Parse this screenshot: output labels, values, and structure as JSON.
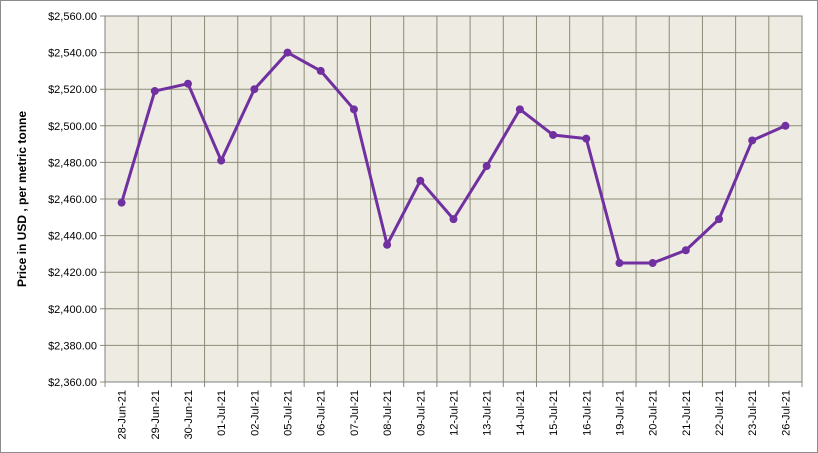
{
  "chart_data": {
    "type": "line",
    "title": "",
    "xlabel": "",
    "ylabel": "Price in USD , per metric tonne",
    "ylim": [
      2360,
      2560
    ],
    "y_step": 20,
    "y_tick_labels": [
      "$2,360.00",
      "$2,380.00",
      "$2,400.00",
      "$2,420.00",
      "$2,440.00",
      "$2,460.00",
      "$2,480.00",
      "$2,500.00",
      "$2,520.00",
      "$2,540.00",
      "$2,560.00"
    ],
    "categories": [
      "28-Jun-21",
      "29-Jun-21",
      "30-Jun-21",
      "01-Jul-21",
      "02-Jul-21",
      "05-Jul-21",
      "06-Jul-21",
      "07-Jul-21",
      "08-Jul-21",
      "09-Jul-21",
      "12-Jul-21",
      "13-Jul-21",
      "14-Jul-21",
      "15-Jul-21",
      "16-Jul-21",
      "19-Jul-21",
      "20-Jul-21",
      "21-Jul-21",
      "22-Jul-21",
      "23-Jul-21",
      "26-Jul-21"
    ],
    "series": [
      {
        "values": [
          2458,
          2519,
          2523,
          2481,
          2520,
          2540,
          2530,
          2509,
          2435,
          2470,
          2449,
          2478,
          2509,
          2495,
          2493,
          2425,
          2425,
          2432,
          2449,
          2492,
          2500
        ],
        "color": "#7030A0"
      }
    ],
    "grid": true,
    "legend": "none",
    "plot_background": "#EEEBE3",
    "grid_color": "#8C8C78"
  }
}
